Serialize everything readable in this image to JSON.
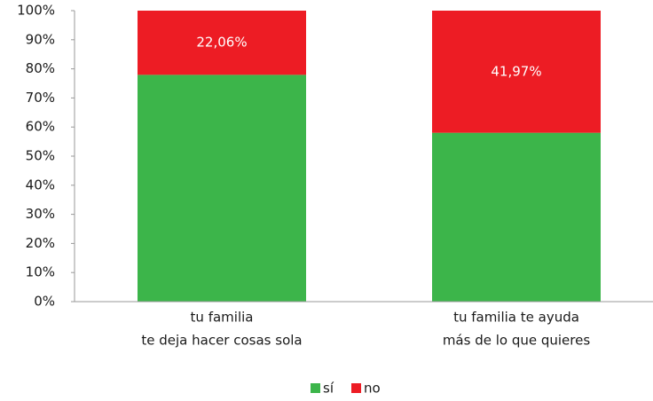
{
  "chart_data": {
    "type": "stacked_bar",
    "categories": [
      [
        "tu familia",
        "te deja hacer cosas sola"
      ],
      [
        "tu familia te ayuda",
        "más de lo que quieres"
      ]
    ],
    "series": [
      {
        "name": "sí",
        "color": "#3cb54a",
        "values": [
          77.94,
          58.03
        ]
      },
      {
        "name": "no",
        "color": "#ed1c24",
        "values": [
          22.06,
          41.97
        ],
        "value_labels": [
          "22,06%",
          "41,97%"
        ]
      }
    ],
    "ylim": [
      0,
      100
    ],
    "yticks": [
      {
        "value": 0,
        "label": "0%"
      },
      {
        "value": 10,
        "label": "10%"
      },
      {
        "value": 20,
        "label": "20%"
      },
      {
        "value": 30,
        "label": "30%"
      },
      {
        "value": 40,
        "label": "40%"
      },
      {
        "value": 50,
        "label": "50%"
      },
      {
        "value": 60,
        "label": "60%"
      },
      {
        "value": 70,
        "label": "70%"
      },
      {
        "value": 80,
        "label": "80%"
      },
      {
        "value": 90,
        "label": "90%"
      },
      {
        "value": 100,
        "label": "100%"
      }
    ],
    "legend": "bottom"
  }
}
